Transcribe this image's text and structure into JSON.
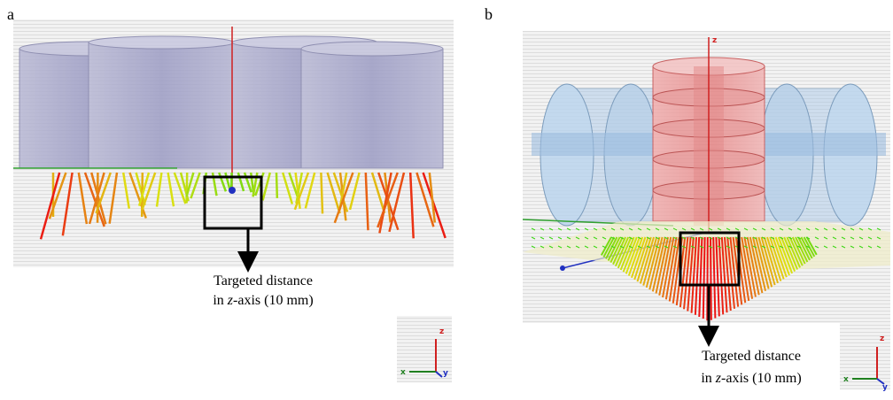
{
  "panels": [
    {
      "label": "a",
      "caption": {
        "line1": "Targeted distance",
        "line2": {
          "pre": "in ",
          "italic": "z",
          "post": "-axis (10 mm)"
        }
      },
      "triad": {
        "z": "z",
        "x": "x",
        "y": "y"
      }
    },
    {
      "label": "b",
      "axis_label": "z",
      "caption": {
        "line1": "Targeted distance",
        "line2": {
          "pre": "in ",
          "italic": "z",
          "post": "-axis (10 mm)"
        }
      },
      "triad": {
        "z": "z",
        "x": "x",
        "y": "y"
      }
    }
  ]
}
